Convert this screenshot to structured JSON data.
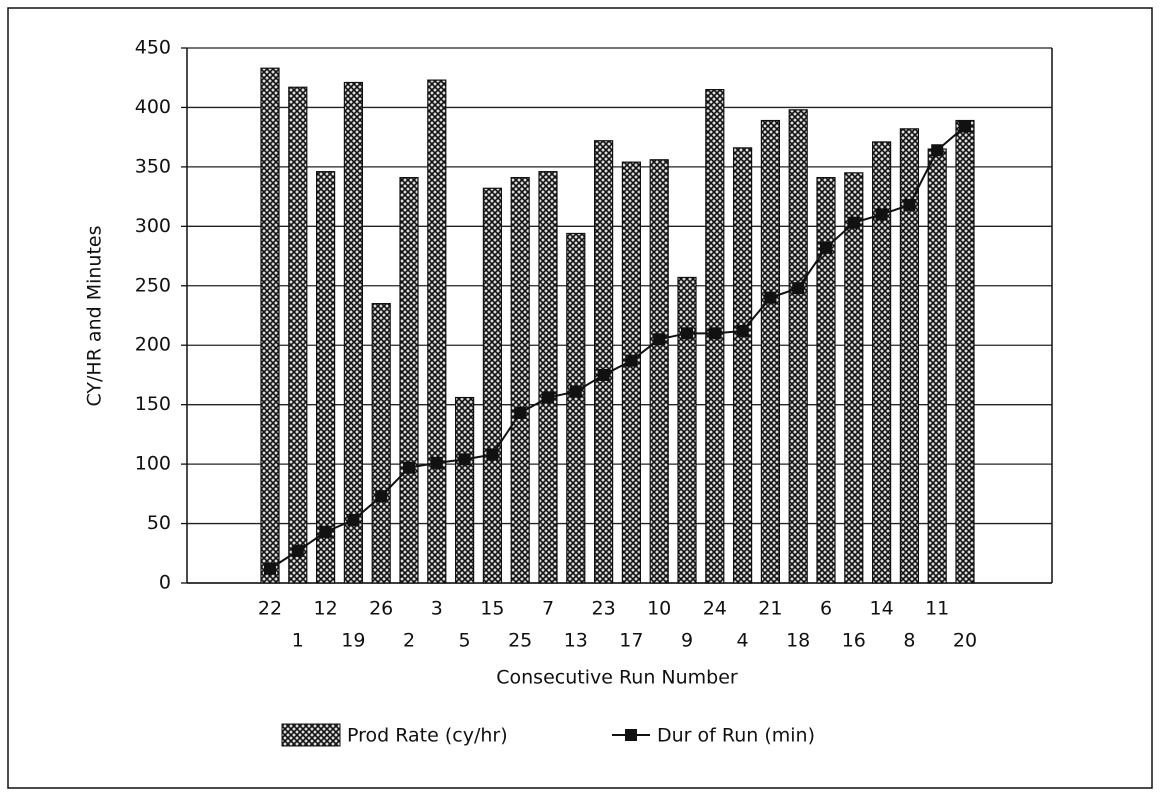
{
  "chart_data": {
    "type": "bar",
    "x_label": "Consecutive Run Number",
    "y_label": "CY/HR and Minutes",
    "categories": [
      "22",
      "1",
      "12",
      "19",
      "26",
      "2",
      "3",
      "5",
      "15",
      "25",
      "7",
      "13",
      "23",
      "17",
      "10",
      "9",
      "24",
      "4",
      "21",
      "18",
      "6",
      "16",
      "14",
      "8",
      "11",
      "20"
    ],
    "series": [
      {
        "name": "Prod Rate (cy/hr)",
        "type": "bar",
        "color": "#111111",
        "values": [
          433,
          417,
          346,
          421,
          235,
          341,
          423,
          156,
          332,
          341,
          346,
          294,
          372,
          354,
          356,
          257,
          415,
          366,
          389,
          398,
          341,
          345,
          371,
          382,
          365,
          389
        ]
      },
      {
        "name": "Dur of Run (min)",
        "type": "line",
        "color": "#111111",
        "values": [
          12,
          27,
          43,
          53,
          73,
          97,
          101,
          104,
          108,
          143,
          156,
          161,
          175,
          187,
          205,
          210,
          210,
          212,
          240,
          248,
          282,
          303,
          310,
          318,
          364,
          384
        ]
      }
    ],
    "ylim": [
      0,
      450
    ],
    "yticks": [
      0,
      50,
      100,
      150,
      200,
      250,
      300,
      350,
      400,
      450
    ],
    "grid": true
  }
}
